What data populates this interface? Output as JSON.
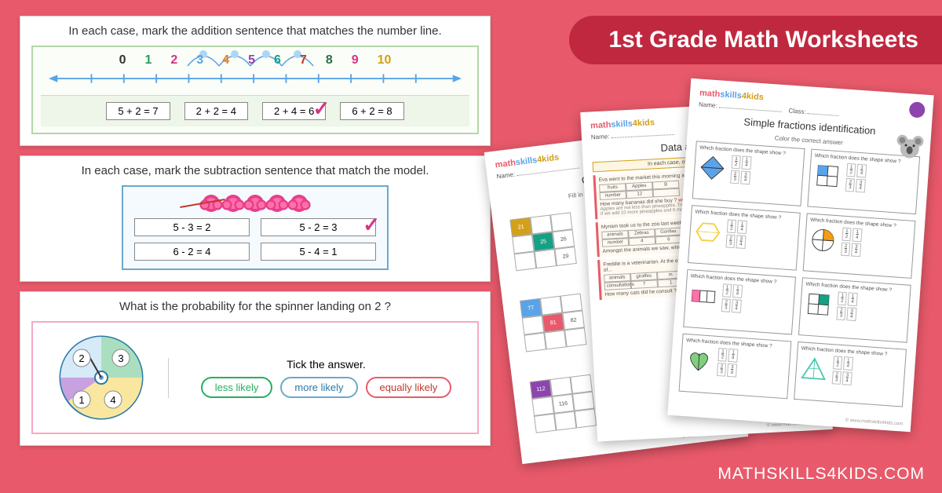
{
  "banner": {
    "title": "1st Grade Math Worksheets"
  },
  "footer": {
    "brand": "MATHSKILLS4KIDS.COM"
  },
  "card1": {
    "prompt": "In each case, mark the addition sentence that matches the number line.",
    "numbers": [
      "0",
      "1",
      "2",
      "3",
      "4",
      "5",
      "6",
      "7",
      "8",
      "9",
      "10"
    ],
    "answers": [
      "5 + 2 = 7",
      "2 + 2 = 4",
      "2 + 4 = 6",
      "6 + 2 = 8"
    ],
    "correct_index": 2
  },
  "card2": {
    "prompt": "In each case, mark the subtraction sentence that match the model.",
    "answers": [
      "5 - 3 = 2",
      "5 - 2 = 3",
      "6 - 2 = 4",
      "5 - 4 = 1"
    ],
    "correct_index": 1
  },
  "card3": {
    "prompt": "What is the probability for the spinner landing on 2 ?",
    "tick": "Tick the answer.",
    "options": [
      {
        "label": "less likely",
        "cls": "green"
      },
      {
        "label": "more likely",
        "cls": "blue"
      },
      {
        "label": "equally likely",
        "cls": "red"
      }
    ],
    "spinner_labels": [
      "1",
      "2",
      "3",
      "4"
    ],
    "spinner_colors": [
      "#f9e79f",
      "#d6eaf8",
      "#a9dfbf",
      "#c8a2e0"
    ]
  },
  "sheets": {
    "logo_parts": [
      "math",
      "skills",
      "4kids"
    ],
    "footer": "© www.mathskills4kids.com",
    "s1": {
      "name": "Name:",
      "title": "Counting",
      "sub": "Fill in the missing number",
      "grids": [
        [
          "21",
          "",
          "",
          "",
          "25",
          "26",
          "",
          "",
          "29"
        ],
        [
          "77",
          "",
          "",
          "",
          "81",
          "82",
          "",
          "",
          ""
        ],
        [
          "112",
          "",
          "",
          "",
          "116",
          "",
          "",
          "",
          ""
        ]
      ]
    },
    "s2": {
      "name": "Name:",
      "title": "Data and graph: I",
      "sub": "In each case, observe the table and answer",
      "rows": [
        {
          "text": "Eva went to the market this morning and bought different fruits she bought.",
          "table": [
            "fruits",
            "Apples",
            "B",
            "number",
            "12",
            ""
          ]
        },
        {
          "q": "How many bananas did she buy ?",
          "a": "write the"
        },
        {
          "text": "Myriam took us to the zoo last week. This is what we could see.",
          "table": [
            "animals",
            "Zebras",
            "Gorillas",
            "number",
            "4",
            "6"
          ]
        },
        {
          "q": "Amongst the animals we saw, which animal... Gorillas are not more than zebras.",
          "a": "True or fa"
        },
        {
          "text": "Freddie is a veterinarian. At the end of every... The following table represents the number of...",
          "table": [
            "animals",
            "giraffes",
            "m",
            "consultations",
            "7",
            "1"
          ]
        },
        {
          "q": "How many cats did he consult ?",
          "a": "Carter the"
        }
      ]
    },
    "s3": {
      "name": "Name:",
      "class": "Class:",
      "title": "Simple fractions identification",
      "sub": "Color the correct answer",
      "question": "Which fraction does the shape show ?",
      "opts": [
        "1/2",
        "1/4",
        "2/3",
        "3/4"
      ],
      "cells": [
        {
          "shape": "diamond",
          "color": "#5aa3e8"
        },
        {
          "shape": "grid4",
          "color": "#5aa3e8"
        },
        {
          "shape": "hexagon",
          "color": "#f4d03f"
        },
        {
          "shape": "pie",
          "color": "#f39c12"
        },
        {
          "shape": "bars3",
          "color": "#ff6fa8"
        },
        {
          "shape": "grid4b",
          "color": "#16a085"
        },
        {
          "shape": "heart",
          "color": "#7fcf7f"
        },
        {
          "shape": "triangle",
          "color": "#48c9b0"
        }
      ]
    }
  },
  "colors": {
    "bg": "#e85a6b",
    "banner_bg": "#c0283f",
    "check": "#d63384"
  }
}
